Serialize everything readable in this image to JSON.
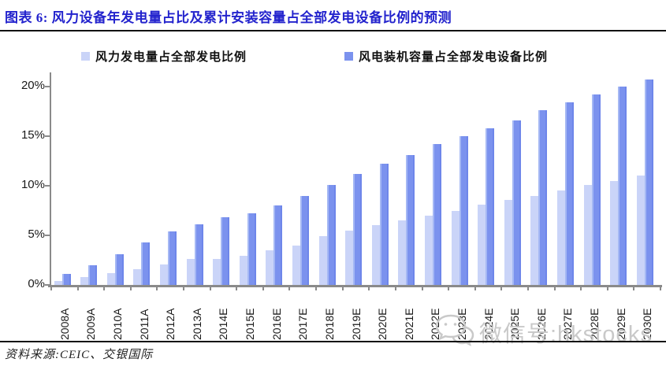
{
  "title": "图表 6: 风力设备年发电量占比及累计安装容量占全部发电设备比例的预测",
  "legend": {
    "items": [
      {
        "label": "风力发电量占全部发电比例",
        "color": "#cad4f8"
      },
      {
        "label": "风电装机容量占全部发电设备比例",
        "color": "#7b92ee"
      }
    ]
  },
  "watermark": {
    "icon": "wechat-icon",
    "text": "微信号:hkstocks"
  },
  "source": "资料来源:CEIC、交银国际",
  "colors": {
    "title_blue": "#2323cd",
    "series_light": "#cad4f8",
    "series_dark": "#7b92ee",
    "axis_gray": "#8a8a8a",
    "watermark_gray": "#c9c9c9"
  },
  "chart_data": {
    "type": "bar",
    "title": "图表 6: 风力设备年发电量占比及累计安装容量占全部发电设备比例的预测",
    "categories": [
      "2008A",
      "2009A",
      "2010A",
      "2011A",
      "2012A",
      "2013A",
      "2014E",
      "2015E",
      "2016E",
      "2017E",
      "2018E",
      "2019E",
      "2020E",
      "2021E",
      "2022E",
      "2023E",
      "2024E",
      "2025E",
      "2026E",
      "2027E",
      "2028E",
      "2029E",
      "2030E"
    ],
    "series": [
      {
        "name": "风力发电量占全部发电比例",
        "values": [
          0.4,
          0.8,
          1.2,
          1.6,
          2.1,
          2.6,
          2.6,
          2.9,
          3.5,
          4.0,
          4.9,
          5.5,
          6.0,
          6.5,
          7.0,
          7.5,
          8.1,
          8.6,
          9.0,
          9.5,
          10.1,
          10.5,
          11.0
        ]
      },
      {
        "name": "风电装机容量占全部发电设备比例",
        "values": [
          1.1,
          2.0,
          3.1,
          4.3,
          5.4,
          6.1,
          6.8,
          7.2,
          8.0,
          9.0,
          10.1,
          11.2,
          12.2,
          13.1,
          14.2,
          15.0,
          15.8,
          16.6,
          17.6,
          18.4,
          19.2,
          20.0,
          20.7
        ]
      }
    ],
    "xlabel": "",
    "ylabel": "",
    "y_ticks": [
      0,
      5,
      10,
      15,
      20
    ],
    "y_tick_labels": [
      "0%",
      "5%",
      "10%",
      "15%",
      "20%"
    ],
    "ylim": [
      0,
      21.4
    ],
    "grid": false,
    "legend_position": "top"
  }
}
